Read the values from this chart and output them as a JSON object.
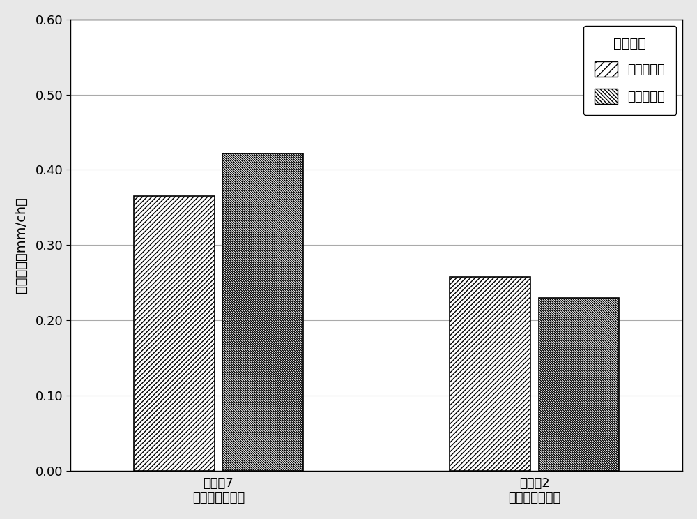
{
  "categories": [
    "比较佹7（无绶热材料）",
    "实施佹2（有绶热材料）"
  ],
  "series": [
    {
      "name": "运转前半段",
      "values": [
        0.365,
        0.258
      ]
    },
    {
      "name": "运转后半段",
      "values": [
        0.422,
        0.23
      ]
    }
  ],
  "ylabel_chars": [
    "搏",
    "耗",
    "速",
    "度",
    "mm/ch"
  ],
  "ylabel_full": "搏耗速度（mm/ch）",
  "ylim": [
    0.0,
    0.6
  ],
  "yticks": [
    0.0,
    0.1,
    0.2,
    0.3,
    0.4,
    0.5,
    0.6
  ],
  "ytick_labels": [
    "0.00",
    "0.10",
    "0.20",
    "0.30",
    "0.40",
    "0.50",
    "0.60"
  ],
  "legend_title": "搏耗速度",
  "legend_labels": [
    "运转前半段",
    "运转后半段"
  ],
  "hatch_first": "/",
  "hatch_second": "\\\\",
  "bar_facecolor": "#ffffff",
  "bar_edgecolor": "#000000",
  "bar_width": 0.12,
  "group_positions": [
    0.25,
    0.72
  ],
  "background_color": "#e8e8e8",
  "plot_bg_color": "#ffffff",
  "grid_color": "#aaaaaa",
  "font_size_ylabel": 14,
  "font_size_ticks": 13,
  "font_size_xticks": 13,
  "font_size_legend_title": 14,
  "font_size_legend": 13
}
